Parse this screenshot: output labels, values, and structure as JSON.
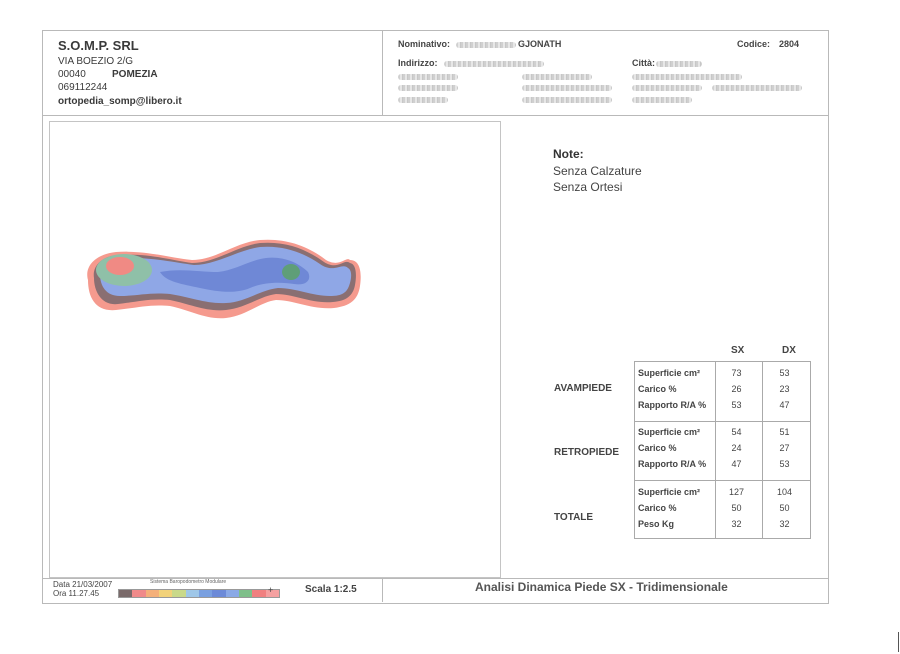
{
  "company": {
    "name": "S.O.M.P. SRL",
    "address": "VIA BOEZIO  2/G",
    "cap": "00040",
    "city": "POMEZIA",
    "phone": "069112244",
    "email": "ortopedia_somp@libero.it"
  },
  "patient": {
    "nominativo_label": "Nominativo:",
    "nominativo_value": "GJONATH",
    "indirizzo_label": "Indirizzo:",
    "citta_label": "Città:",
    "codice_label": "Codice:",
    "codice_value": "2804"
  },
  "notes": {
    "title": "Note:",
    "lines": [
      "Senza Calzature",
      "Senza Ortesi"
    ]
  },
  "table": {
    "col_sx": "SX",
    "col_dx": "DX",
    "sections": [
      {
        "label": "AVAMPIEDE",
        "rows": [
          {
            "metric": "Superficie  cm²",
            "sx": "73",
            "dx": "53"
          },
          {
            "metric": "Carico       %",
            "sx": "26",
            "dx": "23"
          },
          {
            "metric": "Rapporto R/A %",
            "sx": "53",
            "dx": "47"
          }
        ]
      },
      {
        "label": "RETROPIEDE",
        "rows": [
          {
            "metric": "Superficie  cm²",
            "sx": "54",
            "dx": "51"
          },
          {
            "metric": "Carico       %",
            "sx": "24",
            "dx": "27"
          },
          {
            "metric": "Rapporto R/A %",
            "sx": "47",
            "dx": "53"
          }
        ]
      },
      {
        "label": "TOTALE",
        "rows": [
          {
            "metric": "Superficie  cm²",
            "sx": "127",
            "dx": "104"
          },
          {
            "metric": "Carico       %",
            "sx": "50",
            "dx": "50"
          },
          {
            "metric": "Peso        Kg",
            "sx": "32",
            "dx": "32"
          }
        ]
      }
    ]
  },
  "footer": {
    "date": "Data 21/03/2007",
    "time": "Ora 11.27.45",
    "system": "Sistema Baropodometro Modulare",
    "minus": "—",
    "plus": "+",
    "scale": "Scala 1:2.5",
    "title": "Analisi Dinamica Piede SX - Tridimensionale",
    "colors": [
      "#7a6a6a",
      "#f08a8a",
      "#f4b07a",
      "#f2d27a",
      "#c9d98a",
      "#9fc7e8",
      "#7aa0e0",
      "#6c8ad8",
      "#8aa9e6",
      "#7fbf8a",
      "#f08080",
      "#f4a0a0"
    ]
  },
  "pressure_map": {
    "colors": {
      "edge": "#f59a8e",
      "outer": "#8a6f72",
      "body": "#8fa7e6",
      "inner": "#6f88d6",
      "mid": "#8fc0a8",
      "hot": "#f08a84",
      "green": "#5f9e78"
    }
  }
}
